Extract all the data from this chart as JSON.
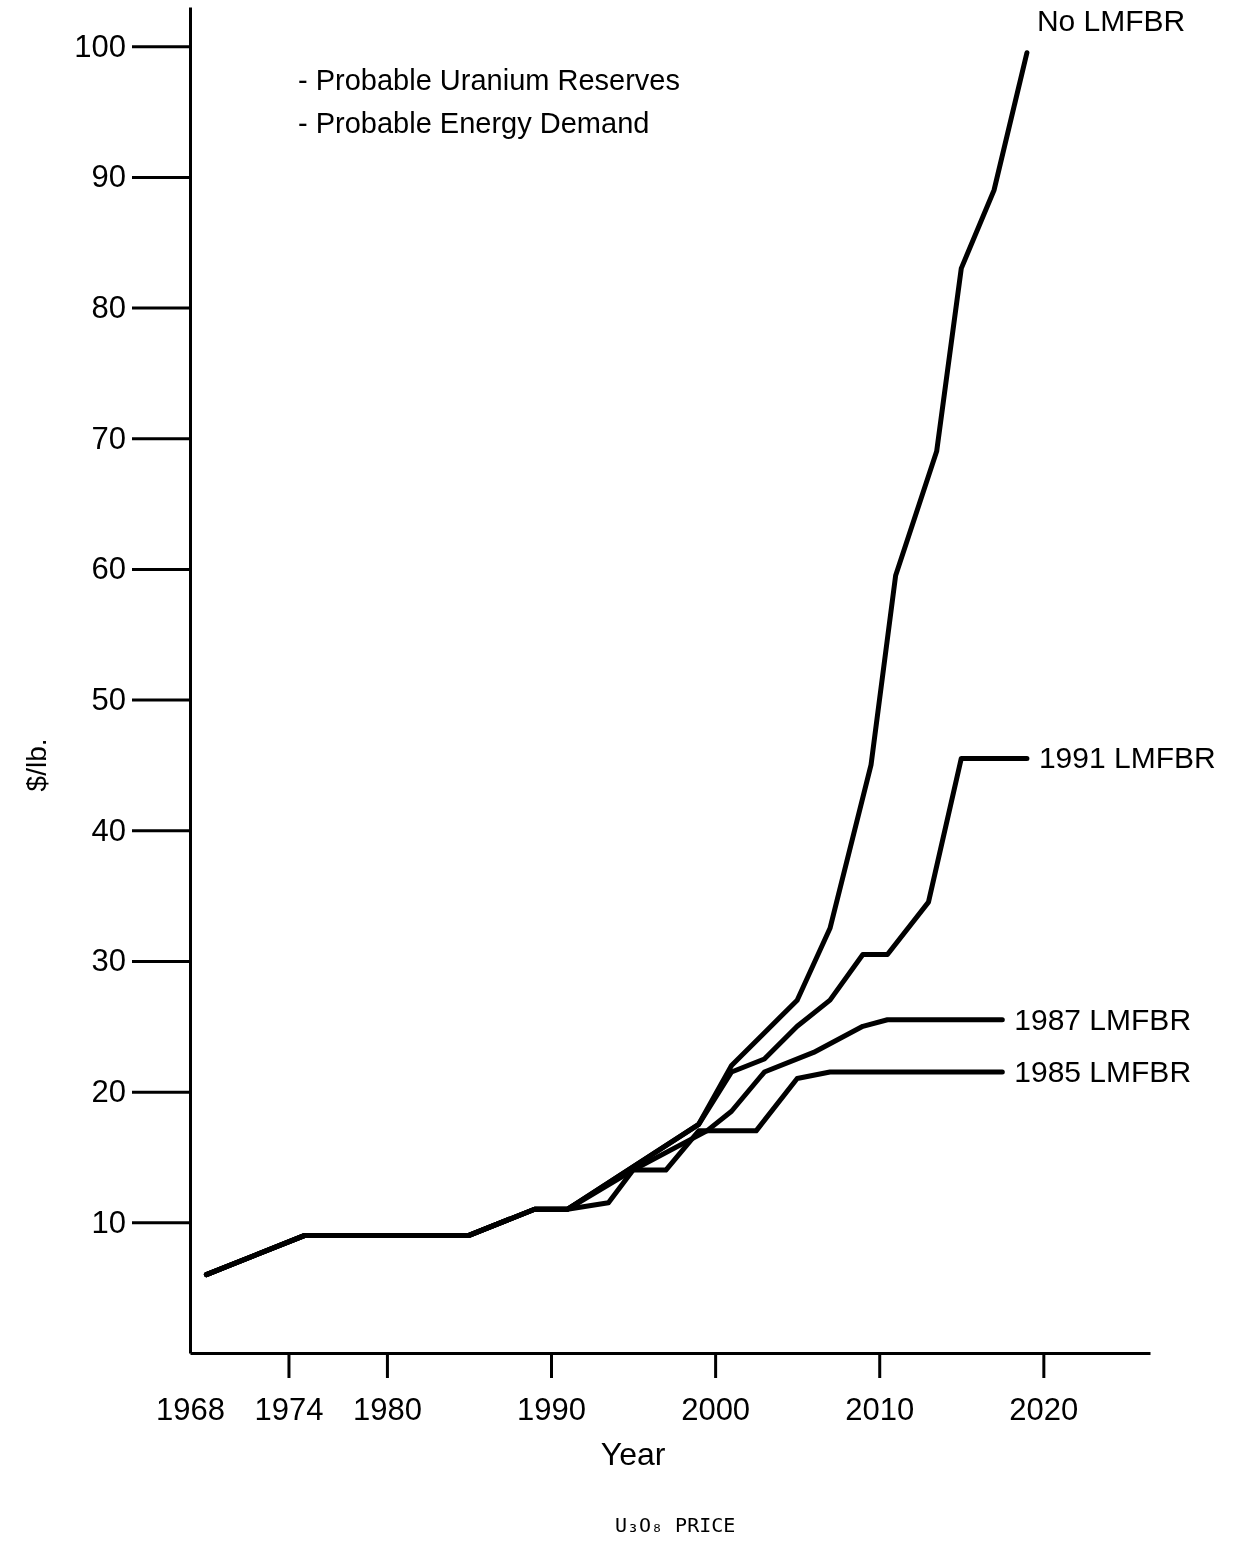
{
  "chart_data": {
    "type": "line",
    "xlabel": "Year",
    "ylabel": "$/lb.",
    "annotations": [
      "- Probable Uranium Reserves",
      "- Probable Energy Demand",
      "U₃O₈ PRICE"
    ],
    "xlim": [
      1968,
      2026.5
    ],
    "ylim": [
      0,
      103
    ],
    "xticks": [
      1968,
      1974,
      1980,
      1990,
      2000,
      2010,
      2020
    ],
    "yticks": [
      10,
      20,
      30,
      40,
      50,
      60,
      70,
      80,
      90,
      100
    ],
    "grid": false,
    "legend": false,
    "marker": "none",
    "line_style": "solid",
    "series": [
      {
        "name": "No LMFBR",
        "color": "#000000",
        "x": [
          1969,
          1975,
          1985,
          1989,
          1991,
          1999,
          2001,
          2005,
          2007,
          2009.5,
          2011,
          2013.5,
          2015,
          2017,
          2019
        ],
        "values": [
          6,
          9,
          9,
          11,
          11,
          17.5,
          22,
          27,
          32.5,
          45,
          59.5,
          69,
          83,
          89,
          99.5
        ]
      },
      {
        "name": "1991 LMFBR",
        "color": "#000000",
        "x": [
          1969,
          1975,
          1985,
          1989,
          1991,
          1999,
          2001,
          2003,
          2005,
          2007,
          2009,
          2010.5,
          2013,
          2015,
          2019
        ],
        "values": [
          6,
          9,
          9,
          11,
          11,
          17.5,
          21.5,
          22.5,
          25,
          27,
          30.5,
          30.5,
          34.5,
          45.5,
          45.5
        ]
      },
      {
        "name": "1987 LMFBR",
        "color": "#000000",
        "x": [
          1969,
          1975,
          1985,
          1989,
          1991,
          1995,
          1999.5,
          2001,
          2003,
          2006,
          2009,
          2010.5,
          2017.5
        ],
        "values": [
          6,
          9,
          9,
          11,
          11,
          14,
          17,
          18.5,
          21.5,
          23,
          25,
          25.5,
          25.5
        ]
      },
      {
        "name": "1985 LMFBR",
        "color": "#000000",
        "x": [
          1969,
          1975,
          1985,
          1989,
          1991,
          1993.5,
          1995,
          1997,
          1999,
          2002.5,
          2005,
          2007,
          2017.5
        ],
        "values": [
          6,
          9,
          9,
          11,
          11,
          11.5,
          14,
          14,
          17,
          17,
          21,
          21.5,
          21.5
        ]
      }
    ]
  }
}
